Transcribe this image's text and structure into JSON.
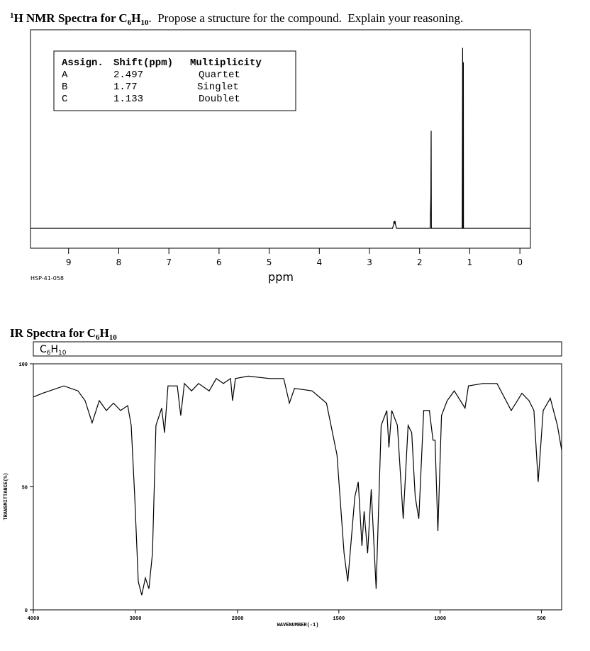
{
  "chart_data": [
    {
      "type": "spectrum",
      "title_parts": [
        "1",
        "H NMR Spectra for C",
        "6",
        "H",
        "10",
        ".",
        "  Propose a structure for the compound.  Explain your reasoning."
      ],
      "table": {
        "header": [
          "Assign.",
          "Shift(ppm)",
          "Multiplicity"
        ],
        "rows": [
          [
            "A",
            "2.497",
            "Quartet"
          ],
          [
            "B",
            "1.77",
            "Singlet"
          ],
          [
            "C",
            "1.133",
            "Doublet"
          ]
        ]
      },
      "xlabel": "ppm",
      "code": "HSP-41-058",
      "xlim": [
        9.76,
        -0.21
      ],
      "ylim": [
        -11,
        110
      ],
      "xticks": [
        9,
        8,
        7,
        6,
        5,
        4,
        3,
        2,
        1,
        0
      ],
      "x": [
        9.76,
        2.54,
        2.52,
        2.51,
        2.5,
        2.49,
        2.48,
        2.46,
        1.79,
        1.775,
        1.77,
        1.765,
        1.75,
        1.15,
        1.142,
        1.14,
        1.135,
        1.128,
        1.125,
        1.12,
        1.1,
        -0.21
      ],
      "values": [
        0,
        0,
        2,
        4,
        3,
        4,
        2,
        0,
        0,
        18,
        54,
        0,
        0,
        0,
        100,
        0,
        0,
        92,
        0,
        0,
        0,
        0
      ],
      "color": "#000000"
    },
    {
      "type": "spectrum",
      "title_parts": [
        "IR Spectra for C",
        "6",
        "H",
        "10"
      ],
      "label_parts": [
        "C",
        "6",
        "H",
        "10"
      ],
      "xlabel": "WAVENUMBER(-1)",
      "ylabel": "TRANSMITTANCE(%)",
      "xlim": [
        4000,
        400
      ],
      "x_break": 2000,
      "ylim": [
        0,
        100
      ],
      "xticks": [
        4000,
        3000,
        2000,
        1500,
        1000,
        500
      ],
      "yticks": [
        0,
        50,
        100
      ],
      "x": [
        4000,
        3910,
        3701,
        3563,
        3493,
        3424,
        3354,
        3285,
        3215,
        3146,
        3076,
        3042,
        3007,
        2972,
        2938,
        2903,
        2868,
        2833,
        2799,
        2743,
        2715,
        2681,
        2590,
        2556,
        2521,
        2451,
        2382,
        2278,
        2208,
        2139,
        2069,
        2049,
        2021,
        1947,
        1842,
        1772,
        1744,
        1719,
        1632,
        1561,
        1509,
        1474,
        1456,
        1421,
        1404,
        1386,
        1375,
        1358,
        1340,
        1316,
        1291,
        1263,
        1253,
        1239,
        1211,
        1182,
        1158,
        1140,
        1123,
        1105,
        1081,
        1053,
        1035,
        1025,
        1011,
        993,
        965,
        930,
        877,
        860,
        789,
        719,
        649,
        596,
        561,
        537,
        516,
        491,
        456,
        421,
        400
      ],
      "values": [
        86.5,
        88,
        91,
        89,
        85,
        76,
        85,
        81,
        84,
        81,
        83,
        75,
        46,
        11.5,
        6,
        13,
        8.6,
        23,
        75,
        82,
        72,
        91,
        91,
        79,
        92,
        89,
        92,
        89,
        94,
        92,
        94,
        85,
        94,
        95,
        94,
        94,
        84,
        90,
        89,
        84,
        63,
        23,
        11.5,
        46,
        52,
        26,
        40,
        23,
        49,
        8.6,
        75,
        81,
        66,
        81,
        75,
        37,
        75,
        72,
        46,
        37,
        81,
        81,
        69,
        69,
        32,
        79,
        85,
        89,
        82,
        91,
        92,
        92,
        81,
        88,
        85,
        81,
        52,
        81,
        86,
        75,
        65
      ],
      "color": "#000000"
    }
  ]
}
